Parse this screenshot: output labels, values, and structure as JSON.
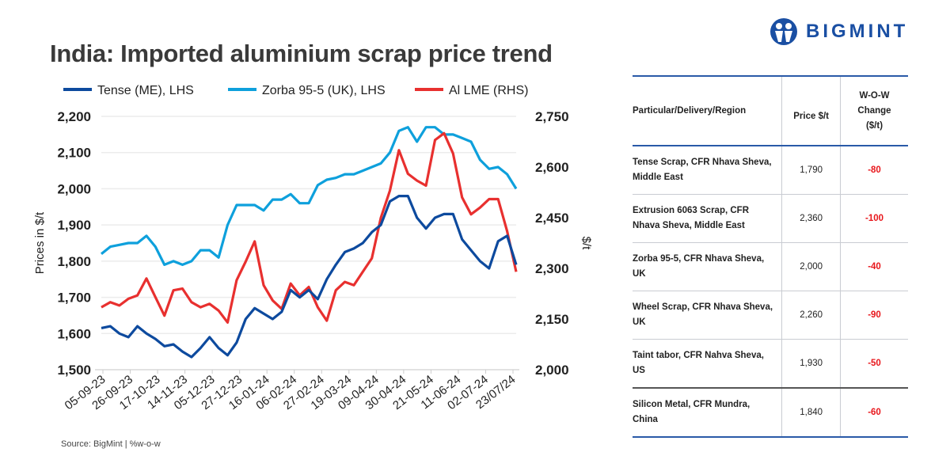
{
  "title": "India: Imported aluminium scrap price trend",
  "logo_text": "BIGMINT",
  "source": "Source: BigMint | %w-o-w",
  "colors": {
    "tense": "#0d4a9e",
    "zorba": "#0ea0dc",
    "lme": "#e8302f",
    "brand": "#1a4fa3",
    "negative": "#e8161b"
  },
  "chart_data": {
    "type": "line",
    "title": "India: Imported aluminium scrap price trend",
    "ylabel": "Prices in $/t",
    "y2label": "$/t",
    "ylim": [
      1500,
      2200
    ],
    "y2lim": [
      2000,
      2750
    ],
    "yticks": [
      "1,500",
      "1,600",
      "1,700",
      "1,800",
      "1,900",
      "2,000",
      "2,100",
      "2,200"
    ],
    "y2ticks": [
      "2,000",
      "2,150",
      "2,300",
      "2,450",
      "2,600",
      "2,750"
    ],
    "grid": true,
    "legend": "top",
    "xtick_labels": [
      "05-09-23",
      "26-09-23",
      "17-10-23",
      "14-11-23",
      "05-12-23",
      "27-12-23",
      "16-01-24",
      "06-02-24",
      "27-02-24",
      "19-03-24",
      "09-04-24",
      "30-04-24",
      "21-05-24",
      "11-06-24",
      "02-07-24",
      "23/07/24"
    ],
    "series": [
      {
        "name": "Tense (ME), LHS",
        "axis": "left",
        "values": [
          1615,
          1620,
          1600,
          1590,
          1620,
          1600,
          1585,
          1565,
          1570,
          1550,
          1535,
          1560,
          1590,
          1560,
          1540,
          1575,
          1640,
          1670,
          1655,
          1640,
          1660,
          1720,
          1700,
          1720,
          1695,
          1750,
          1790,
          1825,
          1835,
          1850,
          1880,
          1900,
          1965,
          1980,
          1980,
          1920,
          1890,
          1920,
          1930,
          1930,
          1860,
          1830,
          1800,
          1780,
          1855,
          1870,
          1790
        ]
      },
      {
        "name": "Zorba 95-5 (UK), LHS",
        "axis": "left",
        "values": [
          1820,
          1840,
          1845,
          1850,
          1850,
          1870,
          1840,
          1790,
          1800,
          1790,
          1800,
          1830,
          1830,
          1810,
          1900,
          1955,
          1955,
          1955,
          1940,
          1970,
          1970,
          1985,
          1960,
          1960,
          2010,
          2025,
          2030,
          2040,
          2040,
          2050,
          2060,
          2070,
          2100,
          2160,
          2170,
          2130,
          2170,
          2170,
          2150,
          2150,
          2140,
          2130,
          2080,
          2055,
          2060,
          2040,
          2000
        ]
      },
      {
        "name": "Al LME (RHS)",
        "axis": "right",
        "values": [
          2185,
          2200,
          2190,
          2210,
          2220,
          2270,
          2215,
          2160,
          2235,
          2240,
          2200,
          2185,
          2195,
          2175,
          2140,
          2265,
          2320,
          2380,
          2250,
          2205,
          2180,
          2255,
          2220,
          2245,
          2185,
          2145,
          2235,
          2260,
          2250,
          2290,
          2330,
          2450,
          2530,
          2650,
          2580,
          2560,
          2545,
          2680,
          2700,
          2640,
          2510,
          2460,
          2480,
          2505,
          2505,
          2410,
          2290
        ]
      }
    ]
  },
  "table": {
    "headers": [
      "Particular/Delivery/Region",
      "Price $/t",
      "W-O-W Change ($/t)"
    ],
    "rows": [
      {
        "particular": "Tense Scrap, CFR Nhava Sheva, Middle East",
        "price": "1,790",
        "change": "-80"
      },
      {
        "particular": "Extrusion 6063 Scrap, CFR Nhava Sheva, Middle East",
        "price": "2,360",
        "change": "-100"
      },
      {
        "particular": "Zorba 95-5, CFR Nhava Sheva, UK",
        "price": "2,000",
        "change": "-40"
      },
      {
        "particular": "Wheel Scrap, CFR Nhava Sheva, UK",
        "price": "2,260",
        "change": "-90"
      },
      {
        "particular": "Taint tabor, CFR Nahva Sheva, US",
        "price": "1,930",
        "change": "-50"
      },
      {
        "particular": "Silicon Metal, CFR Mundra, China",
        "price": "1,840",
        "change": "-60"
      }
    ]
  }
}
